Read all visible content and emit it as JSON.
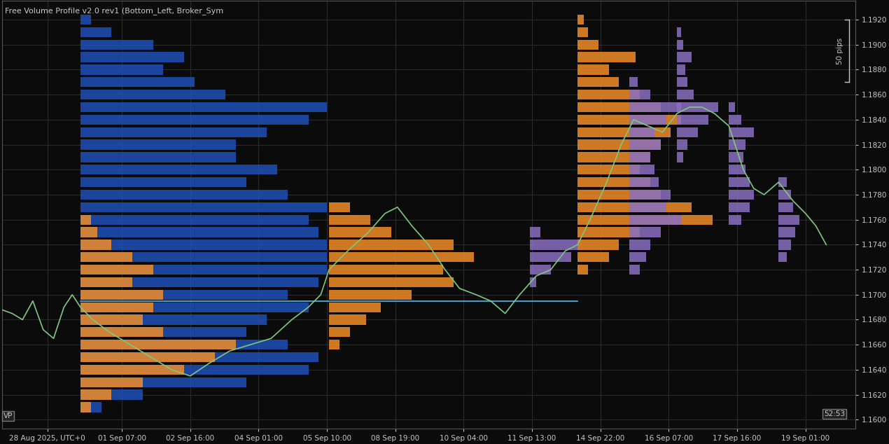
{
  "chart_data": {
    "type": "line",
    "title": "Free Volume Profile v2.0 rev1 (Bottom_Left, Broker_Sym",
    "grid": true,
    "xlim": [
      -22,
      390
    ],
    "xticks": [
      {
        "value": 0,
        "label": "28 Aug 2025, UTC+0"
      },
      {
        "value": 36,
        "label": "01 Sep 07:00"
      },
      {
        "value": 69,
        "label": "02 Sep 16:00"
      },
      {
        "value": 102,
        "label": "04 Sep 01:00"
      },
      {
        "value": 135,
        "label": "05 Sep 10:00"
      },
      {
        "value": 168,
        "label": "08 Sep 19:00"
      },
      {
        "value": 201,
        "label": "10 Sep 04:00"
      },
      {
        "value": 234,
        "label": "11 Sep 13:00"
      },
      {
        "value": 267,
        "label": "14 Sep 22:00"
      },
      {
        "value": 300,
        "label": "16 Sep 07:00"
      },
      {
        "value": 333,
        "label": "17 Sep 16:00"
      },
      {
        "value": 366,
        "label": "19 Sep 01:00"
      }
    ],
    "ylim": [
      1.1593,
      1.1935
    ],
    "yticks": [
      {
        "value": 1.16,
        "label": "1.1600"
      },
      {
        "value": 1.162,
        "label": "1.1620"
      },
      {
        "value": 1.164,
        "label": "1.1640"
      },
      {
        "value": 1.166,
        "label": "1.1660"
      },
      {
        "value": 1.168,
        "label": "1.1680"
      },
      {
        "value": 1.17,
        "label": "1.1700"
      },
      {
        "value": 1.172,
        "label": "1.1720"
      },
      {
        "value": 1.174,
        "label": "1.1740"
      },
      {
        "value": 1.176,
        "label": "1.1760"
      },
      {
        "value": 1.178,
        "label": "1.1780"
      },
      {
        "value": 1.18,
        "label": "1.1800"
      },
      {
        "value": 1.182,
        "label": "1.1820"
      },
      {
        "value": 1.184,
        "label": "1.1840"
      },
      {
        "value": 1.186,
        "label": "1.1860"
      },
      {
        "value": 1.188,
        "label": "1.1880"
      },
      {
        "value": 1.19,
        "label": "1.1900"
      },
      {
        "value": 1.192,
        "label": "1.1920"
      }
    ],
    "profiles": [
      {
        "start": 16,
        "color": "#1f4fb8",
        "prices": [
          1.161,
          1.162,
          1.163,
          1.164,
          1.165,
          1.166,
          1.167,
          1.168,
          1.169,
          1.17,
          1.171,
          1.172,
          1.173,
          1.174,
          1.175,
          1.176,
          1.177,
          1.178,
          1.179,
          1.18,
          1.181,
          1.182,
          1.183,
          1.184,
          1.185,
          1.186,
          1.187,
          1.188,
          1.189,
          1.19,
          1.191,
          1.192
        ],
        "volumes": [
          10,
          30,
          80,
          110,
          115,
          100,
          80,
          90,
          110,
          100,
          115,
          119,
          119,
          119,
          115,
          110,
          119,
          100,
          80,
          95,
          75,
          75,
          90,
          110,
          119,
          70,
          55,
          40,
          50,
          35,
          15,
          5
        ]
      },
      {
        "start": 16,
        "color": "#f08c28",
        "prices": [
          1.161,
          1.162,
          1.163,
          1.164,
          1.165,
          1.166,
          1.167,
          1.168,
          1.169,
          1.17,
          1.171,
          1.172,
          1.173,
          1.174,
          1.175,
          1.176
        ],
        "volumes": [
          5,
          15,
          30,
          50,
          65,
          75,
          40,
          30,
          35,
          40,
          25,
          35,
          25,
          15,
          8,
          5
        ]
      },
      {
        "start": 136,
        "color": "#f08c28",
        "prices": [
          1.166,
          1.167,
          1.168,
          1.169,
          1.17,
          1.171,
          1.172,
          1.173,
          1.174,
          1.175,
          1.176,
          1.177
        ],
        "volumes": [
          5,
          10,
          18,
          25,
          40,
          60,
          55,
          70,
          60,
          30,
          20,
          10
        ]
      },
      {
        "start": 256,
        "color": "#f08c28",
        "prices": [
          1.172,
          1.173,
          1.174,
          1.175,
          1.176,
          1.177,
          1.178,
          1.179,
          1.18,
          1.181,
          1.182,
          1.183,
          1.184,
          1.185,
          1.186,
          1.187,
          1.188,
          1.189,
          1.19,
          1.191,
          1.192
        ],
        "volumes": [
          5,
          15,
          20,
          30,
          65,
          55,
          40,
          35,
          30,
          35,
          40,
          45,
          50,
          40,
          30,
          20,
          15,
          28,
          10,
          5,
          3
        ]
      },
      {
        "start": 233,
        "color": "#8a6fc0",
        "prices": [
          1.171,
          1.172,
          1.173,
          1.174,
          1.175
        ],
        "volumes": [
          3,
          10,
          20,
          23,
          5
        ]
      },
      {
        "start": 281,
        "color": "#8a6fc0",
        "prices": [
          1.172,
          1.173,
          1.174,
          1.175,
          1.176,
          1.177,
          1.178,
          1.179,
          1.18,
          1.181,
          1.182,
          1.183,
          1.184,
          1.185,
          1.186,
          1.187
        ],
        "volumes": [
          5,
          8,
          10,
          15,
          25,
          18,
          20,
          14,
          12,
          10,
          15,
          12,
          18,
          25,
          10,
          4
        ]
      },
      {
        "start": 304,
        "color": "#8a6fc0",
        "prices": [
          1.181,
          1.182,
          1.183,
          1.184,
          1.185,
          1.186,
          1.187,
          1.188,
          1.189,
          1.19,
          1.191
        ],
        "volumes": [
          3,
          5,
          10,
          15,
          20,
          8,
          5,
          4,
          7,
          3,
          2
        ]
      },
      {
        "start": 329,
        "color": "#8a6fc0",
        "prices": [
          1.176,
          1.177,
          1.178,
          1.179,
          1.18,
          1.181,
          1.182,
          1.183,
          1.184,
          1.185
        ],
        "volumes": [
          6,
          10,
          12,
          10,
          8,
          7,
          8,
          12,
          6,
          3
        ]
      },
      {
        "start": 353,
        "color": "#8a6fc0",
        "prices": [
          1.173,
          1.174,
          1.175,
          1.176,
          1.177,
          1.178,
          1.179
        ],
        "volumes": [
          4,
          6,
          8,
          10,
          7,
          6,
          4
        ]
      }
    ],
    "series": [
      {
        "color": "#4fb8ec",
        "x": [
          16,
          256
        ],
        "values": [
          1.1695,
          1.1695
        ]
      },
      {
        "color": "#7fc97f",
        "x": [
          -22,
          -17,
          -12,
          -7,
          -2,
          3,
          8,
          12,
          16,
          22,
          30,
          40,
          50,
          60,
          69,
          78,
          88,
          98,
          108,
          118,
          126,
          132,
          136,
          145,
          155,
          163,
          169,
          176,
          184,
          192,
          199,
          207,
          214,
          221,
          228,
          236,
          243,
          250,
          256,
          262,
          270,
          277,
          283,
          290,
          297,
          304,
          310,
          316,
          322,
          329,
          336,
          341,
          346,
          353,
          360,
          366,
          371,
          376
        ],
        "values": [
          1.1688,
          1.1685,
          1.168,
          1.1695,
          1.1672,
          1.1665,
          1.169,
          1.17,
          1.169,
          1.168,
          1.167,
          1.166,
          1.165,
          1.164,
          1.1635,
          1.1645,
          1.1655,
          1.166,
          1.1665,
          1.168,
          1.169,
          1.17,
          1.172,
          1.1735,
          1.175,
          1.1765,
          1.177,
          1.1755,
          1.174,
          1.172,
          1.1705,
          1.17,
          1.1695,
          1.1685,
          1.17,
          1.1715,
          1.172,
          1.1735,
          1.174,
          1.176,
          1.179,
          1.182,
          1.184,
          1.1835,
          1.183,
          1.1845,
          1.185,
          1.185,
          1.1845,
          1.1835,
          1.18,
          1.1785,
          1.178,
          1.179,
          1.1775,
          1.1765,
          1.1755,
          1.174
        ]
      }
    ],
    "annotations": [
      {
        "text": "50 pips",
        "from": 1.187,
        "to": 1.192
      },
      {
        "text": "52:53",
        "x": 380,
        "y": 1.1602
      },
      {
        "text": "VP",
        "x": -19,
        "y": 1.16
      }
    ]
  }
}
